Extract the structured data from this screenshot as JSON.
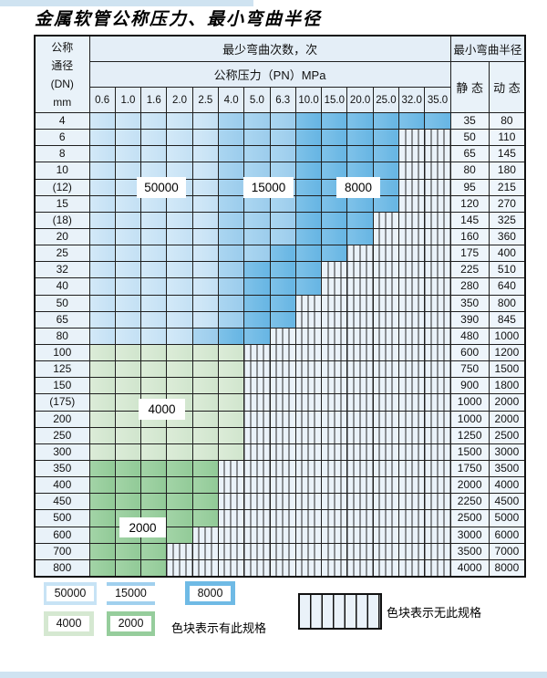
{
  "page": {
    "title": "金属软管公称压力、最小弯曲半径"
  },
  "table": {
    "corner_lines": [
      "公称",
      "通径",
      "(DN)",
      "mm"
    ],
    "header_cycles": "最少弯曲次数，次",
    "header_pressure": "公称压力（PN）MPa",
    "header_radius": "最小弯曲半径",
    "header_static": "静 态",
    "header_dynamic": "动 态"
  },
  "region_labels": [
    {
      "id": "r50000",
      "text": "50000"
    },
    {
      "id": "r15000",
      "text": "15000"
    },
    {
      "id": "r8000",
      "text": "8000"
    },
    {
      "id": "r4000",
      "text": "4000"
    },
    {
      "id": "r2000",
      "text": "2000"
    }
  ],
  "legend": {
    "items": [
      {
        "id": "a",
        "label": "50000"
      },
      {
        "id": "b",
        "label": "15000"
      },
      {
        "id": "c",
        "label": "8000"
      },
      {
        "id": "d",
        "label": "4000"
      },
      {
        "id": "e",
        "label": "2000"
      }
    ],
    "present_note": "色块表示有此规格",
    "absent_note": "色块表示无此规格"
  },
  "colors": {
    "cycles_50000": "#c7e3f5",
    "cycles_15000": "#a0d0ee",
    "cycles_8000": "#6fbae5",
    "cycles_4000": "#d5e8d1",
    "cycles_2000": "#96cd9c",
    "no_spec_bg": "#eaf2f9",
    "grid": "#1f1f1f"
  },
  "chart_data": {
    "type": "table",
    "title": "金属软管公称压力、最小弯曲半径",
    "columns": [
      "0.6",
      "1.0",
      "1.6",
      "2.0",
      "2.5",
      "4.0",
      "5.0",
      "6.3",
      "10.0",
      "15.0",
      "20.0",
      "25.0",
      "32.0",
      "35.0"
    ],
    "code_map": {
      "a": 50000,
      "b": 15000,
      "c": 8000,
      "d": 4000,
      "e": 2000,
      "x": null
    },
    "rows": [
      {
        "dn": "4",
        "cells": "aaaaabbbcccccc",
        "static": "35",
        "dynamic": "80"
      },
      {
        "dn": "6",
        "cells": "aaaaabbbccccxx",
        "static": "50",
        "dynamic": "110"
      },
      {
        "dn": "8",
        "cells": "aaaaabbbccccxx",
        "static": "65",
        "dynamic": "145"
      },
      {
        "dn": "10",
        "cells": "aaaaabbbccccxx",
        "static": "80",
        "dynamic": "180"
      },
      {
        "dn": "(12)",
        "cells": "aaaaabbbccccxx",
        "static": "95",
        "dynamic": "215"
      },
      {
        "dn": "15",
        "cells": "aaaaabbbccccxx",
        "static": "120",
        "dynamic": "270"
      },
      {
        "dn": "(18)",
        "cells": "aaaaabbbcccxxx",
        "static": "145",
        "dynamic": "325"
      },
      {
        "dn": "20",
        "cells": "aaaaabbbcccxxx",
        "static": "160",
        "dynamic": "360"
      },
      {
        "dn": "25",
        "cells": "aaaaabbcccxxxx",
        "static": "175",
        "dynamic": "400"
      },
      {
        "dn": "32",
        "cells": "aaaaabcccxxxxx",
        "static": "225",
        "dynamic": "510"
      },
      {
        "dn": "40",
        "cells": "aaaaabcccxxxxx",
        "static": "280",
        "dynamic": "640"
      },
      {
        "dn": "50",
        "cells": "aaaaabccxxxxxx",
        "static": "350",
        "dynamic": "800"
      },
      {
        "dn": "65",
        "cells": "aaaaabccxxxxxx",
        "static": "390",
        "dynamic": "845"
      },
      {
        "dn": "80",
        "cells": "aaaabccxxxxxxx",
        "static": "480",
        "dynamic": "1000"
      },
      {
        "dn": "100",
        "cells": "ddddddxxxxxxxx",
        "static": "600",
        "dynamic": "1200"
      },
      {
        "dn": "125",
        "cells": "ddddddxxxxxxxx",
        "static": "750",
        "dynamic": "1500"
      },
      {
        "dn": "150",
        "cells": "ddddddxxxxxxxx",
        "static": "900",
        "dynamic": "1800"
      },
      {
        "dn": "(175)",
        "cells": "ddddddxxxxxxxx",
        "static": "1000",
        "dynamic": "2000"
      },
      {
        "dn": "200",
        "cells": "ddddddxxxxxxxx",
        "static": "1000",
        "dynamic": "2000"
      },
      {
        "dn": "250",
        "cells": "ddddddxxxxxxxx",
        "static": "1250",
        "dynamic": "2500"
      },
      {
        "dn": "300",
        "cells": "ddddddxxxxxxxx",
        "static": "1500",
        "dynamic": "3000"
      },
      {
        "dn": "350",
        "cells": "eeeeexxxxxxxxx",
        "static": "1750",
        "dynamic": "3500"
      },
      {
        "dn": "400",
        "cells": "eeeeexxxxxxxxx",
        "static": "2000",
        "dynamic": "4000"
      },
      {
        "dn": "450",
        "cells": "eeeeexxxxxxxxx",
        "static": "2250",
        "dynamic": "4500"
      },
      {
        "dn": "500",
        "cells": "eeeeexxxxxxxxx",
        "static": "2500",
        "dynamic": "5000"
      },
      {
        "dn": "600",
        "cells": "eeeexxxxxxxxxx",
        "static": "3000",
        "dynamic": "6000"
      },
      {
        "dn": "700",
        "cells": "eeexxxxxxxxxxx",
        "static": "3500",
        "dynamic": "7000"
      },
      {
        "dn": "800",
        "cells": "eeexxxxxxxxxxx",
        "static": "4000",
        "dynamic": "8000"
      }
    ],
    "legend_note_present": "色块表示有此规格",
    "legend_note_absent": "色块表示无此规格"
  }
}
